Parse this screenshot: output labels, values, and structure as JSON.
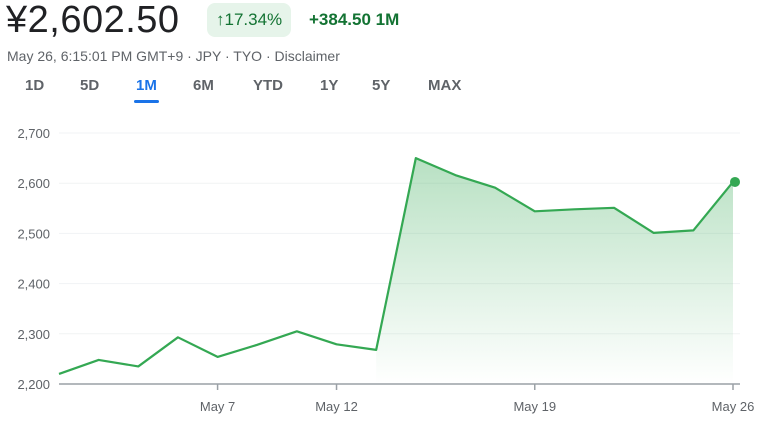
{
  "header": {
    "price": "¥2,602.50",
    "change_pct": "17.34%",
    "arrow_icon": "arrow-up-icon",
    "change_abs": "+384.50 1M",
    "meta": "May 26, 6:15:01 PM GMT+9 · JPY · TYO · Disclaimer"
  },
  "tabs": [
    {
      "label": "1D"
    },
    {
      "label": "5D"
    },
    {
      "label": "1M",
      "active": true
    },
    {
      "label": "6M"
    },
    {
      "label": "YTD"
    },
    {
      "label": "1Y"
    },
    {
      "label": "5Y"
    },
    {
      "label": "MAX"
    }
  ],
  "colors": {
    "line": "#34a853",
    "up": "#137333",
    "active": "#1a73e8"
  },
  "chart_data": {
    "type": "area",
    "title": "",
    "ylim": [
      2200,
      2700
    ],
    "yticks": [
      {
        "v": 2700,
        "label": "2,700"
      },
      {
        "v": 2600,
        "label": "2,600"
      },
      {
        "v": 2500,
        "label": "2,500"
      },
      {
        "v": 2400,
        "label": "2,400"
      },
      {
        "v": 2300,
        "label": "2,300"
      },
      {
        "v": 2200,
        "label": "2,200"
      }
    ],
    "xticks": [
      {
        "i": 4,
        "label": "May 7"
      },
      {
        "i": 7,
        "label": "May 12"
      },
      {
        "i": 12,
        "label": "May 19"
      },
      {
        "i": 17,
        "label": "May 26"
      }
    ],
    "values": [
      2220,
      2248,
      2235,
      2293,
      2254,
      2278,
      2305,
      2279,
      2268,
      2650,
      2616,
      2591,
      2544,
      2548,
      2551,
      2501,
      2506,
      2602.5
    ],
    "grid": true
  }
}
